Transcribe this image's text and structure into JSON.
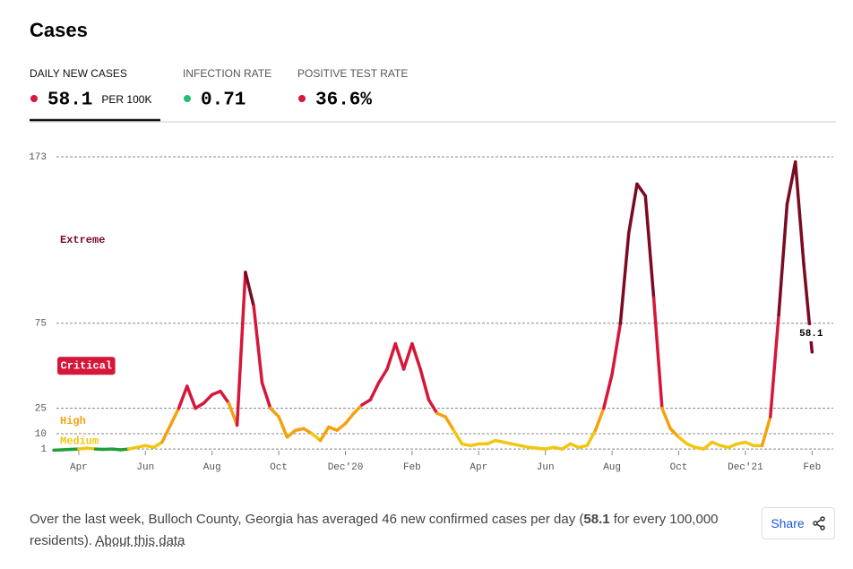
{
  "header": {
    "title": "Cases"
  },
  "tabs": [
    {
      "label": "DAILY NEW CASES",
      "value": "58.1",
      "unit": "PER 100K",
      "color": "#d6173a"
    },
    {
      "label": "INFECTION RATE",
      "value": "0.71",
      "color": "#1fbf6b"
    },
    {
      "label": "POSITIVE TEST RATE",
      "value": "36.6%",
      "color": "#d6173a"
    }
  ],
  "chart_data": {
    "type": "line",
    "categories": [
      null,
      null,
      null,
      "Apr",
      null,
      null,
      null,
      null,
      null,
      null,
      null,
      "Jun",
      null,
      null,
      null,
      null,
      null,
      null,
      null,
      "Aug",
      null,
      null,
      null,
      null,
      null,
      null,
      null,
      "Oct",
      null,
      null,
      null,
      null,
      null,
      null,
      null,
      "Dec'20",
      null,
      null,
      null,
      null,
      null,
      null,
      null,
      "Feb",
      null,
      null,
      null,
      null,
      null,
      null,
      null,
      "Apr",
      null,
      null,
      null,
      null,
      null,
      null,
      null,
      "Jun",
      null,
      null,
      null,
      null,
      null,
      null,
      null,
      "Aug",
      null,
      null,
      null,
      null,
      null,
      null,
      null,
      "Oct",
      null,
      null,
      null,
      null,
      null,
      null,
      null,
      "Dec'21",
      null,
      null,
      null,
      null,
      null,
      null,
      null,
      "Feb"
    ],
    "values": [
      0.3,
      0.5,
      0.8,
      1,
      1.5,
      1,
      0.8,
      1,
      0.5,
      1,
      2,
      3,
      2,
      5,
      15,
      25,
      38,
      25,
      28,
      33,
      35,
      28,
      15,
      105,
      85,
      40,
      25,
      20,
      8,
      12,
      13,
      10,
      6,
      14,
      12,
      16,
      22,
      27,
      30,
      40,
      48,
      63,
      48,
      63,
      48,
      30,
      22,
      20,
      12,
      4,
      3,
      4,
      4,
      6,
      5,
      4,
      3,
      2,
      1.5,
      1,
      2,
      1,
      4,
      2,
      3,
      12,
      25,
      45,
      75,
      128,
      157,
      150,
      90,
      25,
      13,
      8,
      4,
      2,
      1,
      5,
      3,
      2,
      4,
      5,
      3,
      3,
      20,
      80,
      145,
      170,
      110,
      58.1
    ],
    "ylim": [
      0,
      173
    ],
    "yticks": [
      1,
      10,
      25,
      75,
      173
    ],
    "grid": true,
    "below_color": "#1f9e3a",
    "bands": [
      {
        "name": "Medium",
        "min": 1,
        "max": 10,
        "color": "#f2c511"
      },
      {
        "name": "High",
        "min": 10,
        "max": 25,
        "color": "#f5a10f"
      },
      {
        "name": "Critical",
        "min": 25,
        "max": 75,
        "color": "#d6173a"
      },
      {
        "name": "Extreme",
        "min": 75,
        "max": 173,
        "color": "#7a0b22"
      }
    ]
  },
  "summary": {
    "before": "Over the last week, Bulloch County, Georgia has averaged 46 new confirmed cases per day (",
    "bold": "58.1",
    "after": " for every 100,000 residents). ",
    "link": "About this data"
  },
  "share": {
    "label": "Share"
  }
}
